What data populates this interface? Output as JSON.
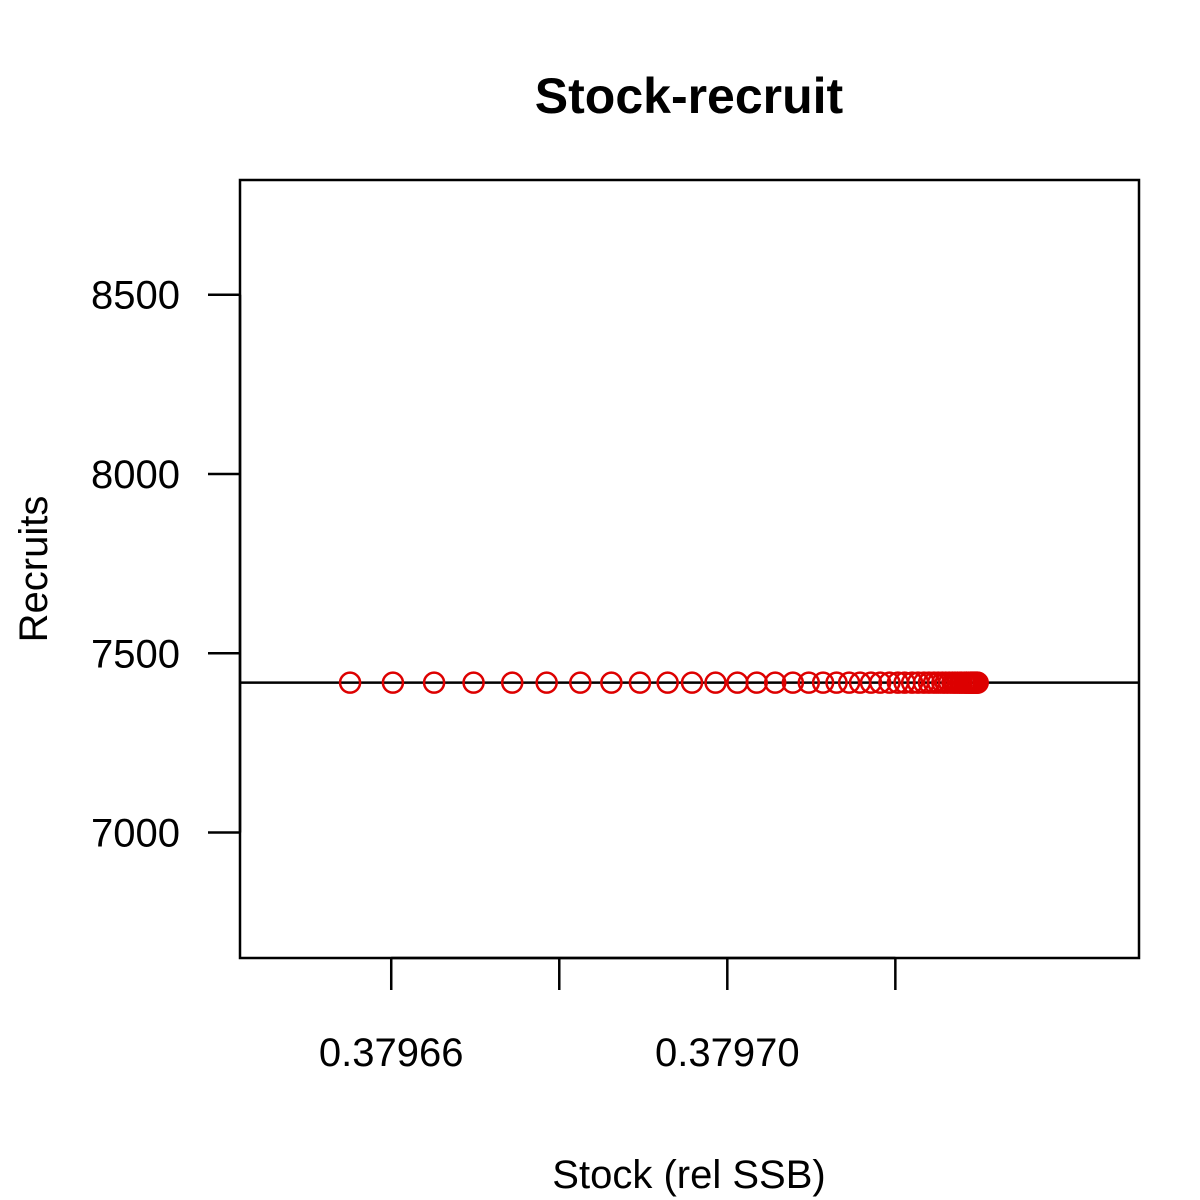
{
  "chart_data": {
    "type": "scatter",
    "title": "Stock-recruit",
    "xlabel": "Stock (rel SSB)",
    "ylabel": "Recruits",
    "xlim": [
      0.379642,
      0.379749
    ],
    "ylim": [
      6650,
      8820
    ],
    "x_ticks": [
      0.37966,
      0.37968,
      0.3797,
      0.37972
    ],
    "x_tick_labels": [
      "0.37966",
      "",
      "0.37970",
      ""
    ],
    "y_ticks": [
      7000,
      7500,
      8000,
      8500
    ],
    "y_tick_labels": [
      "7000",
      "7500",
      "8000",
      "8500"
    ],
    "reference_line_y": 7418,
    "grid": false,
    "point_style": "open-circle",
    "colors": {
      "points": "#dd0000",
      "line": "#000000"
    },
    "points": [
      {
        "x": 0.3796551,
        "y": 7418
      },
      {
        "x": 0.3796602,
        "y": 7418
      },
      {
        "x": 0.3796651,
        "y": 7418
      },
      {
        "x": 0.3796698,
        "y": 7418
      },
      {
        "x": 0.3796744,
        "y": 7418
      },
      {
        "x": 0.3796785,
        "y": 7418
      },
      {
        "x": 0.3796825,
        "y": 7418
      },
      {
        "x": 0.3796862,
        "y": 7418
      },
      {
        "x": 0.3796896,
        "y": 7418
      },
      {
        "x": 0.3796929,
        "y": 7418
      },
      {
        "x": 0.3796958,
        "y": 7418
      },
      {
        "x": 0.3796986,
        "y": 7418
      },
      {
        "x": 0.3797012,
        "y": 7418
      },
      {
        "x": 0.3797035,
        "y": 7418
      },
      {
        "x": 0.3797057,
        "y": 7418
      },
      {
        "x": 0.3797078,
        "y": 7418
      },
      {
        "x": 0.3797097,
        "y": 7418
      },
      {
        "x": 0.3797114,
        "y": 7418
      },
      {
        "x": 0.379713,
        "y": 7418
      },
      {
        "x": 0.3797145,
        "y": 7418
      },
      {
        "x": 0.3797158,
        "y": 7418
      },
      {
        "x": 0.3797171,
        "y": 7418
      },
      {
        "x": 0.3797182,
        "y": 7418
      },
      {
        "x": 0.3797193,
        "y": 7418
      },
      {
        "x": 0.3797203,
        "y": 7418
      },
      {
        "x": 0.3797211,
        "y": 7418
      },
      {
        "x": 0.379722,
        "y": 7418
      },
      {
        "x": 0.3797227,
        "y": 7418
      },
      {
        "x": 0.3797234,
        "y": 7418
      },
      {
        "x": 0.379724,
        "y": 7418
      },
      {
        "x": 0.3797246,
        "y": 7418
      },
      {
        "x": 0.3797251,
        "y": 7418
      },
      {
        "x": 0.3797256,
        "y": 7418
      },
      {
        "x": 0.379726,
        "y": 7418
      },
      {
        "x": 0.3797264,
        "y": 7418
      },
      {
        "x": 0.3797268,
        "y": 7418
      },
      {
        "x": 0.3797271,
        "y": 7418
      },
      {
        "x": 0.3797274,
        "y": 7418
      },
      {
        "x": 0.3797277,
        "y": 7418
      },
      {
        "x": 0.3797279,
        "y": 7418
      },
      {
        "x": 0.3797282,
        "y": 7418
      },
      {
        "x": 0.3797284,
        "y": 7418
      },
      {
        "x": 0.3797285,
        "y": 7418
      },
      {
        "x": 0.3797287,
        "y": 7418
      },
      {
        "x": 0.3797289,
        "y": 7418
      },
      {
        "x": 0.379729,
        "y": 7418
      },
      {
        "x": 0.3797291,
        "y": 7418
      },
      {
        "x": 0.3797292,
        "y": 7418
      },
      {
        "x": 0.3797293,
        "y": 7418
      },
      {
        "x": 0.3797294,
        "y": 7418
      },
      {
        "x": 0.3797295,
        "y": 7418
      },
      {
        "x": 0.3797296,
        "y": 7418
      },
      {
        "x": 0.3797297,
        "y": 7418
      },
      {
        "x": 0.3797298,
        "y": 7418
      }
    ]
  }
}
